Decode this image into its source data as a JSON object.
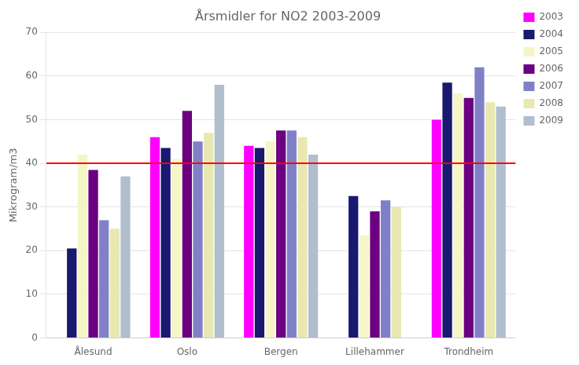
{
  "chart_data": {
    "type": "bar",
    "title": "Årsmidler for NO2 2003-2009",
    "ylabel": "Mikrogram/m3",
    "categories": [
      "Ålesund",
      "Oslo",
      "Bergen",
      "Lillehammer",
      "Trondheim"
    ],
    "series": [
      {
        "name": "2003",
        "color": "#ff00ff",
        "values": [
          0,
          46,
          44,
          0,
          50
        ]
      },
      {
        "name": "2004",
        "color": "#191970",
        "values": [
          20.5,
          43.5,
          43.5,
          32.5,
          58.5
        ]
      },
      {
        "name": "2005",
        "color": "#f5f5c8",
        "values": [
          42,
          41,
          45,
          23.5,
          56
        ]
      },
      {
        "name": "2006",
        "color": "#6b0080",
        "values": [
          38.5,
          52,
          47.5,
          29,
          55
        ]
      },
      {
        "name": "2007",
        "color": "#8080c8",
        "values": [
          27,
          45,
          47.5,
          31.5,
          62
        ]
      },
      {
        "name": "2008",
        "color": "#e8e8b0",
        "values": [
          25,
          47,
          46,
          30,
          54
        ]
      },
      {
        "name": "2009",
        "color": "#b0bece",
        "values": [
          37,
          58,
          42,
          0,
          53
        ]
      }
    ],
    "reference_line": {
      "y": 40,
      "color": "#ff0000"
    },
    "ylim": [
      0,
      70
    ],
    "yticks": [
      0,
      10,
      20,
      30,
      40,
      50,
      60,
      70
    ],
    "grid": true,
    "legend": "upper right"
  }
}
